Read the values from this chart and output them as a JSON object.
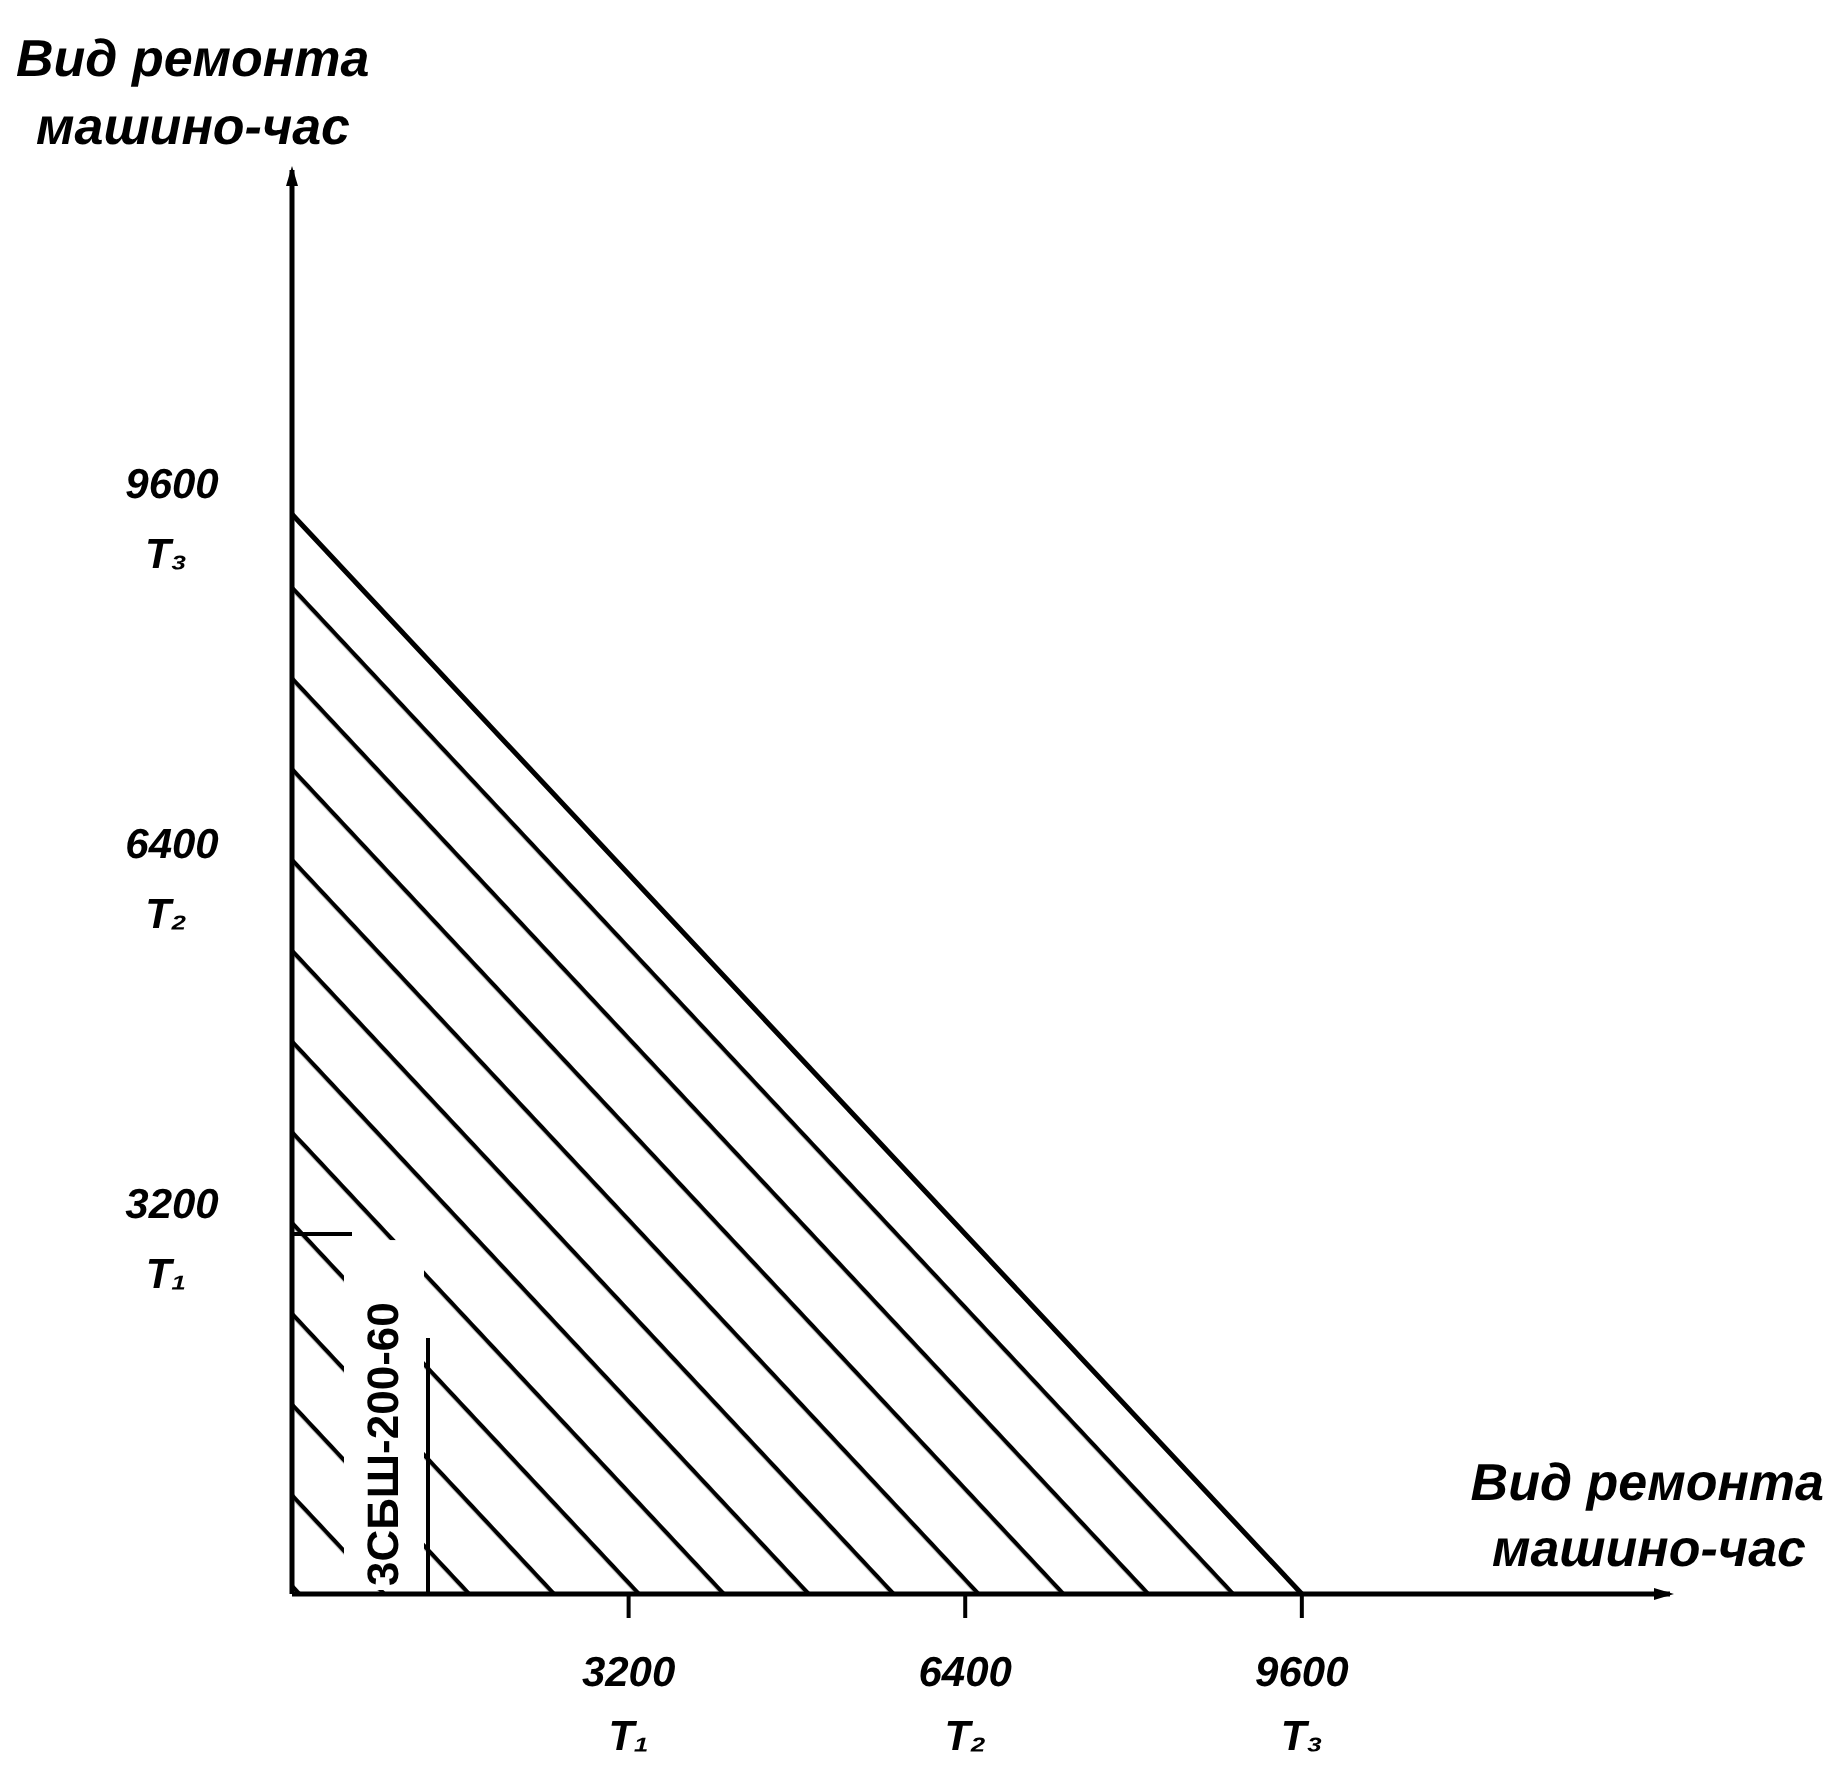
{
  "chart_data": {
    "type": "area",
    "xlabel": "Вид ремонта машино-час",
    "ylabel": "Вид ремонта машино-час",
    "x": [
      0,
      9600
    ],
    "values": [
      9600,
      0
    ],
    "color": "#000000",
    "xlim": [
      0,
      13100
    ],
    "ylim": [
      0,
      12660
    ],
    "xticks": [
      {
        "value": 3200,
        "label": "3200 T₁"
      },
      {
        "value": 6400,
        "label": "6400 T₂"
      },
      {
        "value": 9600,
        "label": "9600 T₃"
      }
    ],
    "yticks": [
      {
        "value": 3200,
        "label": "3200 T₁"
      },
      {
        "value": 6400,
        "label": "6400 T₂"
      },
      {
        "value": 9600,
        "label": "9600 T₃"
      }
    ],
    "annotations": [
      "3СБШ-200-60"
    ],
    "grid": false
  }
}
